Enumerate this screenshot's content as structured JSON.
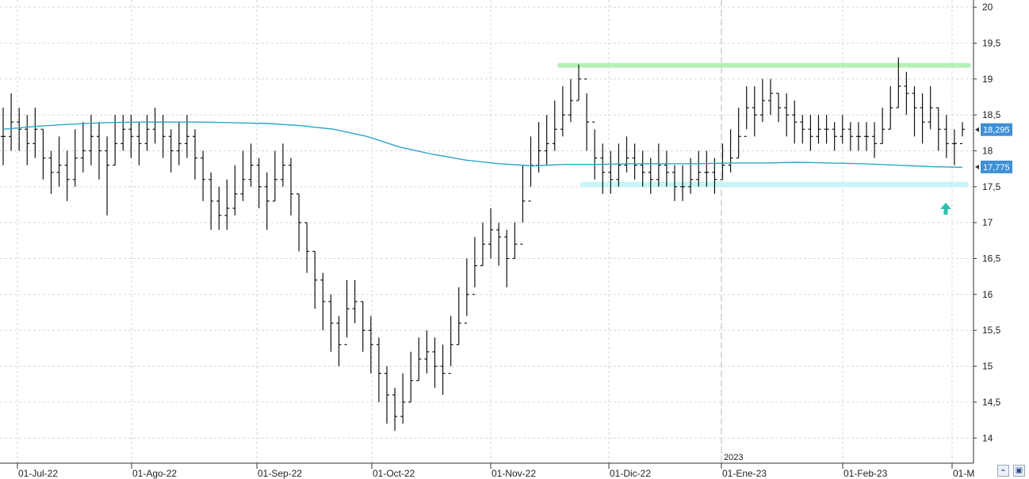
{
  "chart_data": {
    "type": "ohlc",
    "ylim": [
      13.65,
      20.1
    ],
    "y_ticks": [
      "20",
      "19,5",
      "19",
      "18,5",
      "18",
      "17,5",
      "17",
      "16,5",
      "16",
      "15,5",
      "15",
      "14,5",
      "14"
    ],
    "x_ticks": [
      "01-Jul-22",
      "01-Ago-22",
      "01-Sep-22",
      "01-Oct-22",
      "01-Nov-22",
      "01-Dic-22",
      "01-Ene-23",
      "01-Feb-23",
      "01-M"
    ],
    "year_marker": "2023",
    "grid": true,
    "price_badges": [
      {
        "value": "18,295",
        "color": "#3d8fd6"
      },
      {
        "value": "17,775",
        "color": "#3d8fd6"
      }
    ],
    "resistance_level": 19.19,
    "resistance_color": "#b6f0b6",
    "support_level": 17.53,
    "support_color": "#c8f6f8",
    "moving_average_color": "#2aa6c8",
    "arrow_color": "#30c0b0",
    "close_series": [
      18.2,
      18.4,
      18.3,
      18.1,
      18.3,
      17.9,
      17.7,
      17.8,
      17.6,
      17.9,
      18.0,
      18.2,
      18.0,
      17.8,
      18.1,
      18.3,
      18.2,
      18.1,
      18.3,
      18.4,
      18.2,
      18.0,
      18.1,
      18.2,
      17.9,
      17.6,
      17.3,
      17.1,
      17.2,
      17.4,
      17.6,
      17.8,
      17.5,
      17.3,
      17.6,
      17.8,
      17.4,
      17.0,
      16.6,
      16.2,
      15.9,
      15.6,
      15.3,
      15.8,
      15.9,
      15.5,
      15.3,
      14.9,
      14.6,
      14.3,
      14.5,
      14.8,
      15.1,
      15.2,
      15.0,
      14.9,
      15.3,
      15.6,
      16.0,
      16.4,
      16.7,
      16.9,
      16.8,
      16.5,
      16.7,
      17.3,
      17.8,
      18.0,
      18.1,
      18.3,
      18.5,
      18.7,
      19.0,
      18.4,
      17.9,
      17.7,
      17.6,
      17.8,
      17.9,
      17.8,
      17.7,
      17.6,
      17.8,
      17.7,
      17.5,
      17.5,
      17.6,
      17.7,
      17.7,
      17.6,
      17.8,
      17.9,
      18.2,
      18.6,
      18.5,
      18.7,
      18.8,
      18.6,
      18.5,
      18.4,
      18.3,
      18.2,
      18.3,
      18.3,
      18.2,
      18.3,
      18.2,
      18.2,
      18.2,
      18.1,
      18.3,
      18.6,
      18.9,
      18.8,
      18.6,
      18.4,
      18.6,
      18.3,
      18.1,
      18.1,
      18.3
    ],
    "high_series": [
      18.6,
      18.8,
      18.6,
      18.5,
      18.6,
      18.3,
      18.0,
      18.2,
      18.0,
      18.3,
      18.4,
      18.5,
      18.4,
      18.2,
      18.5,
      18.5,
      18.5,
      18.4,
      18.5,
      18.6,
      18.5,
      18.3,
      18.4,
      18.5,
      18.3,
      18.0,
      17.7,
      17.5,
      17.6,
      17.8,
      18.0,
      18.1,
      17.9,
      17.7,
      18.0,
      18.1,
      17.9,
      17.4,
      17.0,
      16.6,
      16.3,
      16.0,
      15.7,
      16.2,
      16.2,
      15.9,
      15.7,
      15.4,
      15.0,
      14.7,
      14.9,
      15.2,
      15.4,
      15.5,
      15.4,
      15.3,
      15.7,
      16.1,
      16.5,
      16.8,
      17.0,
      17.2,
      17.0,
      16.9,
      17.0,
      17.8,
      18.2,
      18.4,
      18.5,
      18.7,
      18.9,
      19.0,
      19.2,
      18.8,
      18.3,
      18.1,
      18.0,
      18.1,
      18.2,
      18.1,
      18.0,
      17.9,
      18.1,
      18.0,
      17.8,
      17.8,
      17.9,
      18.0,
      18.0,
      17.9,
      18.1,
      18.3,
      18.6,
      18.9,
      18.9,
      19.0,
      19.0,
      18.8,
      18.8,
      18.7,
      18.5,
      18.5,
      18.5,
      18.5,
      18.4,
      18.5,
      18.4,
      18.4,
      18.4,
      18.4,
      18.6,
      18.9,
      19.3,
      19.1,
      18.9,
      18.8,
      18.9,
      18.6,
      18.5,
      18.3,
      18.4
    ],
    "low_series": [
      17.8,
      18.0,
      18.0,
      17.8,
      17.9,
      17.6,
      17.4,
      17.5,
      17.3,
      17.5,
      17.7,
      17.8,
      17.6,
      17.1,
      17.8,
      18.0,
      17.9,
      17.8,
      18.0,
      18.1,
      17.9,
      17.7,
      17.8,
      17.9,
      17.6,
      17.3,
      16.9,
      16.9,
      16.9,
      17.1,
      17.3,
      17.5,
      17.2,
      16.9,
      17.3,
      17.5,
      17.1,
      16.6,
      16.3,
      15.8,
      15.5,
      15.2,
      15.0,
      15.4,
      15.6,
      15.2,
      14.9,
      14.5,
      14.2,
      14.1,
      14.2,
      14.5,
      14.8,
      14.9,
      14.7,
      14.6,
      15.0,
      15.3,
      15.7,
      16.1,
      16.4,
      16.5,
      16.4,
      16.1,
      16.5,
      17.0,
      17.5,
      17.7,
      17.8,
      18.0,
      18.2,
      18.4,
      18.7,
      18.0,
      17.6,
      17.4,
      17.4,
      17.5,
      17.7,
      17.6,
      17.5,
      17.4,
      17.5,
      17.5,
      17.3,
      17.3,
      17.4,
      17.5,
      17.5,
      17.4,
      17.6,
      17.7,
      17.9,
      18.3,
      18.2,
      18.4,
      18.5,
      18.4,
      18.2,
      18.1,
      18.1,
      18.0,
      18.1,
      18.1,
      18.0,
      18.1,
      18.0,
      18.0,
      18.0,
      17.9,
      18.1,
      18.3,
      18.6,
      18.5,
      18.2,
      18.1,
      18.3,
      18.0,
      17.9,
      17.8,
      18.2
    ],
    "ma_series": [
      18.3,
      18.34,
      18.37,
      18.39,
      18.4,
      18.4,
      18.4,
      18.39,
      18.38,
      18.35,
      18.3,
      18.2,
      18.05,
      17.95,
      17.87,
      17.82,
      17.79,
      17.81,
      17.81,
      17.82,
      17.82,
      17.82,
      17.83,
      17.83,
      17.84,
      17.83,
      17.82,
      17.8,
      17.78,
      17.77
    ]
  }
}
